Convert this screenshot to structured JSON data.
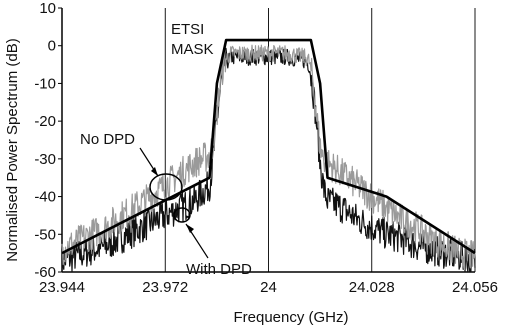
{
  "chart_data": {
    "type": "line",
    "title": "",
    "xlabel": "Frequency (GHz)",
    "ylabel": "Normalised Power Spectrum (dB)",
    "xlim": [
      23.944,
      24.056
    ],
    "ylim": [
      -60,
      10
    ],
    "xticks": [
      23.944,
      23.972,
      24,
      24.028,
      24.056
    ],
    "xtick_labels": [
      "23.944",
      "23.972",
      "24",
      "24.028",
      "24.056"
    ],
    "yticks": [
      10,
      0,
      -10,
      -20,
      -30,
      -40,
      -50,
      -60
    ],
    "ytick_labels": [
      "10",
      "0",
      "-10",
      "-20",
      "-30",
      "-40",
      "-50",
      "-60"
    ],
    "grid": "vertical lines at x ticks",
    "series": [
      {
        "name": "No DPD",
        "color": "#9a9a9a",
        "x": [
          23.944,
          23.95,
          23.956,
          23.962,
          23.968,
          23.972,
          23.976,
          23.98,
          23.984,
          23.985,
          23.986,
          23.987,
          23.988,
          23.989,
          23.99,
          23.995,
          24.0,
          24.005,
          24.01,
          24.011,
          24.012,
          24.013,
          24.014,
          24.015,
          24.016,
          24.02,
          24.024,
          24.028,
          24.032,
          24.036,
          24.04,
          24.044,
          24.048,
          24.052,
          24.056
        ],
        "y": [
          -54,
          -51,
          -48,
          -44,
          -40,
          -37,
          -34,
          -31,
          -29,
          -26,
          -18,
          -9,
          -4,
          -3,
          -2,
          -2,
          -2,
          -2,
          -3,
          -4,
          -9,
          -18,
          -27,
          -30,
          -31,
          -34,
          -37,
          -40,
          -43,
          -46,
          -48,
          -51,
          -53,
          -55,
          -56
        ]
      },
      {
        "name": "With DPD",
        "color": "#111111",
        "x": [
          23.944,
          23.95,
          23.956,
          23.962,
          23.968,
          23.972,
          23.976,
          23.98,
          23.984,
          23.985,
          23.986,
          23.987,
          23.988,
          23.989,
          23.99,
          23.995,
          24.0,
          24.005,
          24.01,
          24.011,
          24.012,
          24.013,
          24.014,
          24.015,
          24.016,
          24.02,
          24.024,
          24.028,
          24.032,
          24.036,
          24.04,
          24.044,
          24.048,
          24.052,
          24.056
        ],
        "y": [
          -57,
          -55,
          -53,
          -50,
          -47,
          -45,
          -43,
          -41,
          -37,
          -30,
          -20,
          -11,
          -5,
          -4,
          -3,
          -3,
          -3,
          -3,
          -4,
          -5,
          -11,
          -20,
          -31,
          -38,
          -41,
          -43,
          -46,
          -48,
          -50,
          -51,
          -53,
          -54,
          -55,
          -56,
          -57
        ]
      },
      {
        "name": "ETSI MASK",
        "color": "#000000",
        "x": [
          23.944,
          23.984,
          23.986,
          23.9885,
          24.0115,
          24.014,
          24.016,
          24.032,
          24.056
        ],
        "y": [
          -55,
          -35,
          -10,
          1.5,
          1.5,
          -10,
          -35,
          -40,
          -55
        ]
      }
    ],
    "annotations": [
      {
        "text": "ETSI",
        "at_x": 23.971,
        "at_y": 4
      },
      {
        "text": "MASK",
        "at_x": 23.971,
        "at_y": -2
      },
      {
        "text": "No DPD",
        "at_x": 23.952,
        "at_y": -25
      },
      {
        "text": "With DPD",
        "at_x": 23.978,
        "at_y": -57
      }
    ]
  }
}
